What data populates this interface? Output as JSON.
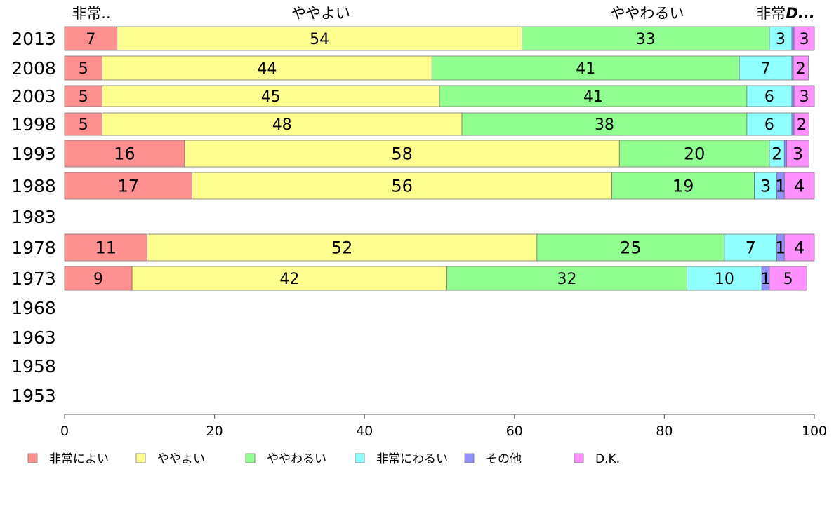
{
  "chart_data": {
    "type": "bar",
    "orientation": "horizontal",
    "stacked": true,
    "categories": [
      "2013",
      "2008",
      "2003",
      "1998",
      "1993",
      "1988",
      "1983",
      "1978",
      "1973",
      "1968",
      "1963",
      "1958",
      "1953"
    ],
    "series": [
      {
        "name": "非常によい",
        "color": "#ff9090",
        "values": [
          7,
          5,
          5,
          5,
          16,
          17,
          null,
          11,
          9,
          null,
          null,
          null,
          null
        ]
      },
      {
        "name": "ややよい",
        "color": "#ffff90",
        "values": [
          54,
          44,
          45,
          48,
          58,
          56,
          null,
          52,
          42,
          null,
          null,
          null,
          null
        ]
      },
      {
        "name": "ややわるい",
        "color": "#90ff90",
        "values": [
          33,
          41,
          41,
          38,
          20,
          19,
          null,
          25,
          32,
          null,
          null,
          null,
          null
        ]
      },
      {
        "name": "非常にわるい",
        "color": "#90ffff",
        "values": [
          3,
          7,
          6,
          6,
          2,
          3,
          null,
          7,
          10,
          null,
          null,
          null,
          null
        ]
      },
      {
        "name": "その他",
        "color": "#9090ff",
        "values": [
          0.3,
          0.2,
          0.3,
          0.3,
          0.3,
          1,
          null,
          1,
          1,
          null,
          null,
          null,
          null
        ]
      },
      {
        "name": "D.K.",
        "color": "#ff90ff",
        "values": [
          3,
          2,
          3,
          2,
          3,
          4,
          null,
          4,
          5,
          null,
          null,
          null,
          null
        ]
      }
    ],
    "top_labels": [
      "非常..",
      "ややよい",
      "ややわるい",
      "非常..",
      "D..."
    ],
    "xlim": [
      0,
      100
    ],
    "xticks": [
      "0",
      "20",
      "40",
      "60",
      "80",
      "100"
    ],
    "legend_position": "bottom-left",
    "grid": false
  }
}
